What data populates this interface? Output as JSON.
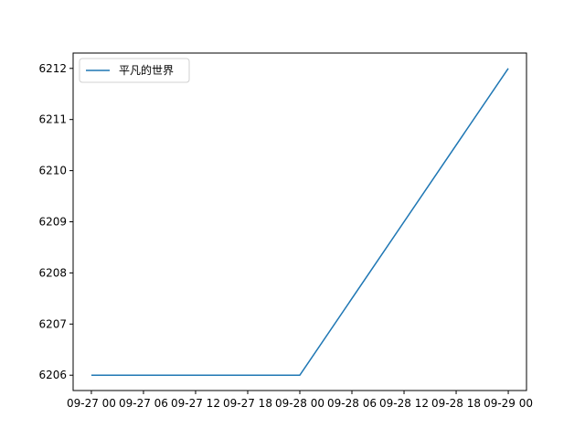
{
  "chart_data": {
    "type": "line",
    "title": "",
    "xlabel": "",
    "ylabel": "",
    "x_tick_labels": [
      "09-27 00",
      "09-27 06",
      "09-27 12",
      "09-27 18",
      "09-28 00",
      "09-28 06",
      "09-28 12",
      "09-28 18",
      "09-29 00"
    ],
    "y_tick_labels": [
      "6206",
      "6207",
      "6208",
      "6209",
      "6210",
      "6211",
      "6212"
    ],
    "xlim": [
      "09-27 00",
      "09-29 00"
    ],
    "ylim": [
      6205.7,
      6212.3
    ],
    "grid": false,
    "legend_position": "top-left",
    "series": [
      {
        "name": "平凡的世界",
        "color": "#1f77b4",
        "x": [
          "09-27 00",
          "09-28 00",
          "09-29 00"
        ],
        "values": [
          6206,
          6206,
          6212
        ]
      }
    ]
  }
}
